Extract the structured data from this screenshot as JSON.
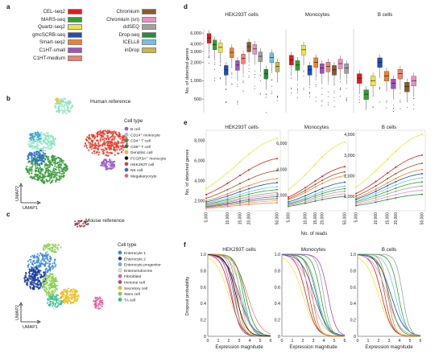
{
  "panel_labels": {
    "a": "a",
    "b": "b",
    "c": "c",
    "d": "d",
    "e": "e",
    "f": "f"
  },
  "legend_a": {
    "left": [
      {
        "name": "CEL-seq2",
        "color": "#e31a1c"
      },
      {
        "name": "MARS-seq",
        "color": "#33a02c"
      },
      {
        "name": "Quartz-seq2",
        "color": "#f0e442"
      },
      {
        "name": "gmcSCRB-seq",
        "color": "#1f4fb4"
      },
      {
        "name": "Smart-seq2",
        "color": "#f08030"
      },
      {
        "name": "C1HT-small",
        "color": "#a050c0"
      },
      {
        "name": "C1HT-medium",
        "color": "#f08070"
      }
    ],
    "right": [
      {
        "name": "Chromium",
        "color": "#8b5a2b"
      },
      {
        "name": "Chromium (sn)",
        "color": "#e98fc2"
      },
      {
        "name": "ddSEQ",
        "color": "#a0a0a0"
      },
      {
        "name": "Drop-seq",
        "color": "#2a8a3a"
      },
      {
        "name": "ICELL8",
        "color": "#6fc3e0"
      },
      {
        "name": "inDrop",
        "color": "#c8b84a"
      }
    ]
  },
  "panel_b": {
    "title": "Human reference",
    "legend_title": "Cell type",
    "items": [
      {
        "name": "B cell",
        "color": "#9b5fc8"
      },
      {
        "name": "CD14⁺ monocyte",
        "color": "#8ee3c0"
      },
      {
        "name": "CD4⁺ T cell",
        "color": "#3a9a3a"
      },
      {
        "name": "CD8⁺ T cell",
        "color": "#2a7a2a"
      },
      {
        "name": "Dendritic cell",
        "color": "#f0c030"
      },
      {
        "name": "FCGR3A⁺ monocyte",
        "color": "#111111"
      },
      {
        "name": "HEK293T cell",
        "color": "#e83a2a"
      },
      {
        "name": "NK cell",
        "color": "#2a70c8"
      },
      {
        "name": "Megakaryocyte",
        "color": "#e06a8a"
      }
    ],
    "xaxis": "UMAP1",
    "yaxis": "UMAP2"
  },
  "panel_c": {
    "title": "Mouse reference",
    "legend_title": "Cell type",
    "items": [
      {
        "name": "Enterocyte 1",
        "color": "#3a8ad8"
      },
      {
        "name": "Enterocyte 2",
        "color": "#1a3a9a"
      },
      {
        "name": "Enterocyte progenitor",
        "color": "#6ab0e0"
      },
      {
        "name": "Enteroendocrine",
        "color": "#e0e0e0"
      },
      {
        "name": "Fibroblast",
        "color": "#e85aa0"
      },
      {
        "name": "Immune cell",
        "color": "#c83a8a"
      },
      {
        "name": "Secretory cell",
        "color": "#f0c020"
      },
      {
        "name": "Stem cell",
        "color": "#8ad050"
      },
      {
        "name": "TA cell",
        "color": "#3ac090"
      }
    ],
    "xaxis": "UMAP1",
    "yaxis": "UMAP2"
  },
  "chart_data": [
    {
      "type": "box",
      "panel": "d",
      "facets": [
        "HEK293T cells",
        "Monocytes",
        "B cells"
      ],
      "ylabel": "No. of detected genes",
      "yticks": [
        "500",
        "1,000",
        "2,000",
        "3,000",
        "4,000",
        "6,000"
      ],
      "ylim": [
        300,
        7000
      ],
      "log_scale": true,
      "series": [
        {
          "facet": "HEK293T cells",
          "medians": [
            5000,
            3900,
            3500,
            1500,
            2900,
            1800,
            2300,
            3600,
            3300,
            2500,
            1300,
            2400,
            1700
          ]
        },
        {
          "facet": "Monocytes",
          "medians": [
            2200,
            1800,
            3200,
            1500,
            2000,
            1600,
            1700,
            1500,
            1900,
            1600
          ]
        },
        {
          "facet": "B cells",
          "medians": [
            1100,
            600,
            1000,
            2000,
            1200,
            900,
            1300,
            800,
            1000
          ]
        }
      ]
    },
    {
      "type": "line",
      "panel": "e",
      "facets": [
        "HEK293T cells",
        "Monocytes",
        "B cells"
      ],
      "xlabel": "No. of reads",
      "ylabel": "No. of detected genes",
      "x": [
        5000,
        10000,
        15000,
        20000,
        50000
      ],
      "xticks": [
        "5,000",
        "10,000",
        "15,000",
        "20,000",
        "50,000"
      ],
      "yticks": {
        "HEK293T cells": [
          "2,000",
          "4,000",
          "6,000",
          "8,000"
        ],
        "Monocytes": [
          "2,000",
          "4,000",
          "6,000"
        ],
        "B cells": [
          "1,000",
          "2,000",
          "3,000",
          "4,000"
        ]
      },
      "ylim": {
        "HEK293T cells": [
          1000,
          9000
        ],
        "Monocytes": [
          800,
          7000
        ],
        "B cells": [
          300,
          4200
        ]
      }
    },
    {
      "type": "line",
      "panel": "f",
      "facets": [
        "HEK293T cells",
        "Monocytes",
        "B cells"
      ],
      "xlabel": "Expression magnitude",
      "ylabel": "Dropout probability",
      "xticks": [
        "0",
        "1",
        "2",
        "3",
        "4",
        "5",
        "6"
      ],
      "yticks": [
        "0",
        "0.2",
        "0.4",
        "0.6",
        "0.8",
        "1.0"
      ],
      "xlim": [
        0,
        6
      ],
      "ylim": [
        0,
        1
      ]
    }
  ]
}
